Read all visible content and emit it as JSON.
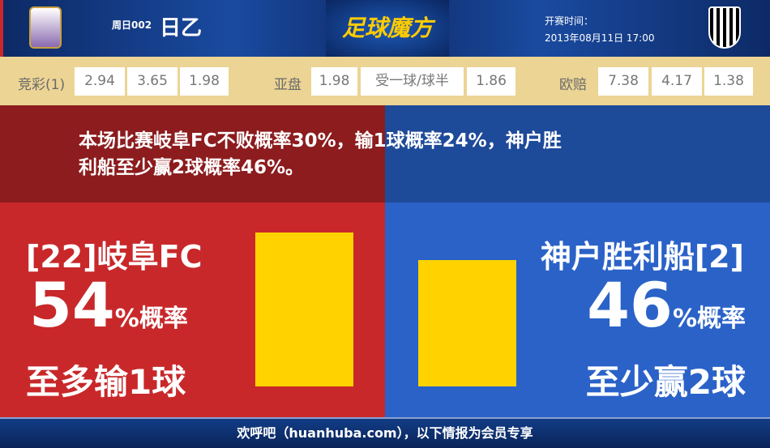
{
  "header": {
    "match_no": "周日002",
    "league": "日乙",
    "brand": "足球魔方",
    "time_label": "开赛时间：",
    "time_value": "2013年08月11日 17:00",
    "home_logo": "FC GIFU",
    "away_logo": "VISSEL"
  },
  "odds": {
    "jc_label": "竞彩(1)",
    "jc": [
      "2.94",
      "3.65",
      "1.98"
    ],
    "asia_label": "亚盘",
    "asia": [
      "1.98",
      "受一球/球半",
      "1.86"
    ],
    "euro_label": "欧赔",
    "euro": [
      "7.38",
      "4.17",
      "1.38"
    ]
  },
  "summary": {
    "line1": "本场比赛岐阜FC不败概率30%，输1球概率24%，神户胜",
    "line2": "利船至少赢2球概率46%。"
  },
  "home": {
    "team": "[22]岐阜FC",
    "percent": "54",
    "percent_suffix": "%概率",
    "result": "至多输1球",
    "probability": 54
  },
  "away": {
    "team": "神户胜利船[2]",
    "percent": "46",
    "percent_suffix": "%概率",
    "result": "至少赢2球",
    "probability": 46
  },
  "colors": {
    "home": "#c8282a",
    "away": "#2a62c8",
    "bar": "#ffd200"
  },
  "footer": {
    "text": "欢呼吧（huanhuba.com），以下情报为会员专享"
  }
}
